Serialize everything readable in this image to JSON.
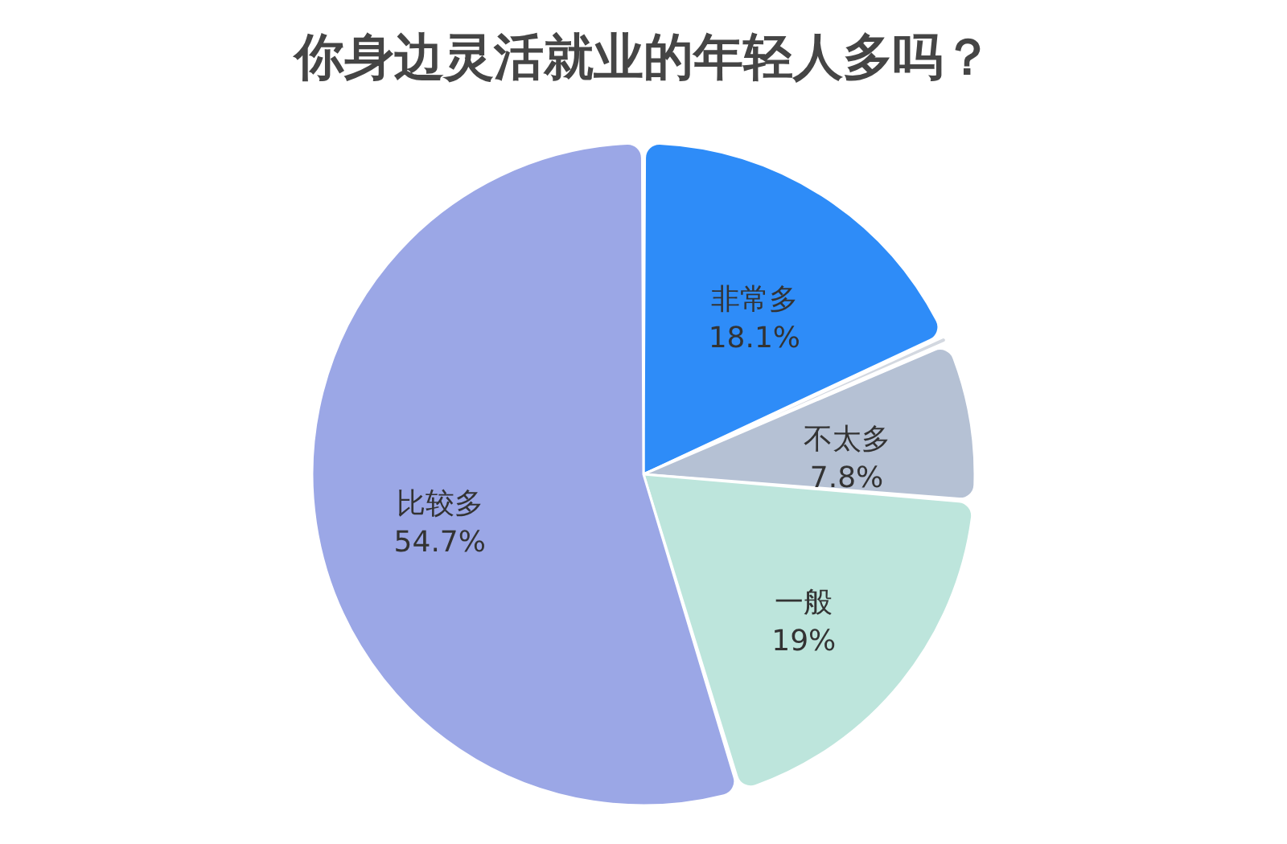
{
  "chart_data": {
    "type": "pie",
    "title": "你身边灵活就业的年轻人多吗？",
    "categories": [
      "非常多",
      null,
      "不太多",
      "一般",
      "比较多"
    ],
    "values": [
      18.1,
      0.4,
      7.8,
      19,
      54.7
    ],
    "value_labels": [
      "18.1%",
      null,
      "7.8%",
      "19%",
      "54.7%"
    ],
    "colors": [
      "#2e8cf8",
      "#d3d8e0",
      "#b5c1d4",
      "#bde5dc",
      "#9ba7e6"
    ]
  }
}
